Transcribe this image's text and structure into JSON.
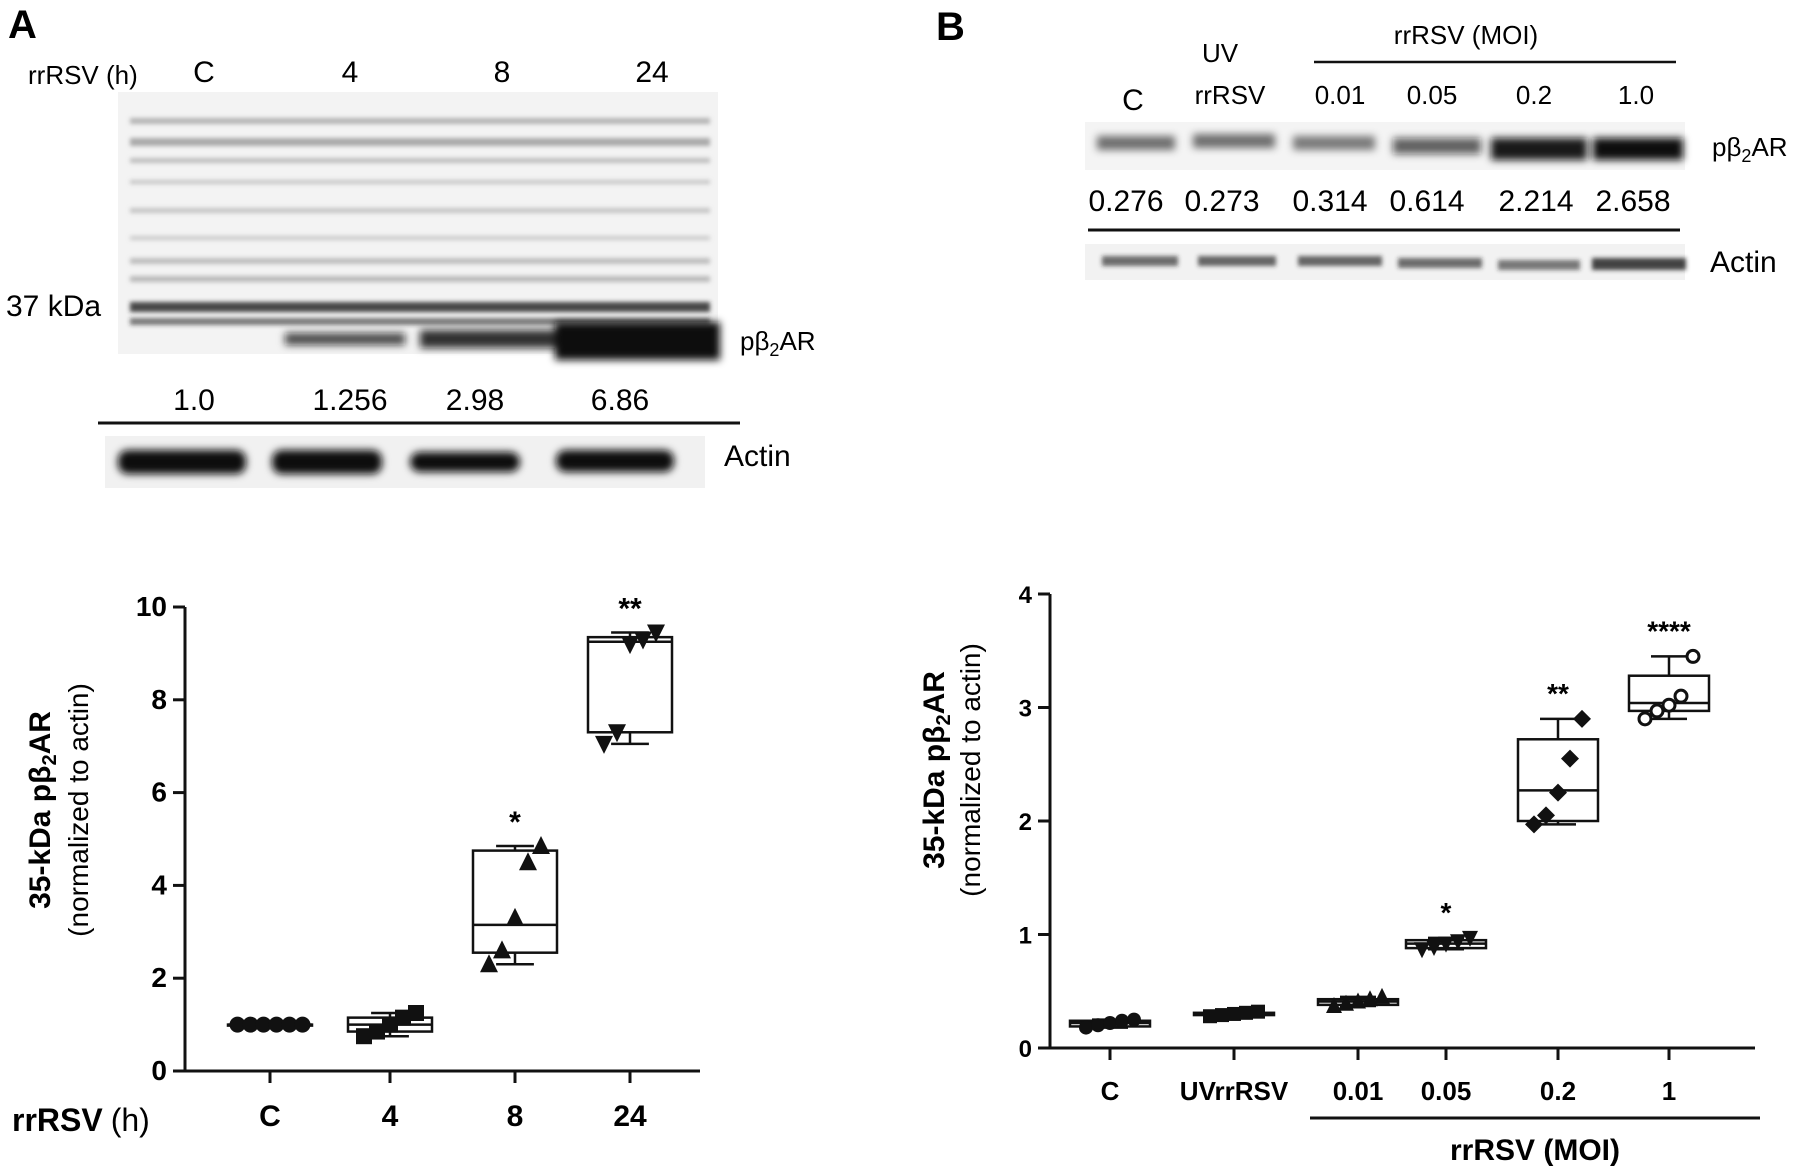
{
  "panel_a": {
    "letter": "A",
    "blot": {
      "row_label": "rrRSV (h)",
      "lanes": [
        "C",
        "4",
        "8",
        "24"
      ],
      "marker_label": "37 kDa",
      "band_label_prefix": "pβ",
      "band_label_sub": "2",
      "band_label_suffix": "AR",
      "ratios": [
        "1.0",
        "1.256",
        "2.98",
        "6.86"
      ],
      "loading_label": "Actin"
    }
  },
  "panel_b": {
    "letter": "B",
    "blot": {
      "lane_c": "C",
      "lane_uv_line1": "UV",
      "lane_uv_line2": "rrRSV",
      "group_label": "rrRSV (MOI)",
      "moi_lanes": [
        "0.01",
        "0.05",
        "0.2",
        "1.0"
      ],
      "band_label_prefix": "pβ",
      "band_label_sub": "2",
      "band_label_suffix": "AR",
      "ratios": [
        "0.276",
        "0.273",
        "0.314",
        "0.614",
        "2.214",
        "2.658"
      ],
      "loading_label": "Actin"
    }
  },
  "chart_data": [
    {
      "type": "box",
      "panel": "A",
      "ylabel_bold_prefix": "35-kDa pβ",
      "ylabel_sub": "2",
      "ylabel_bold_suffix": "AR",
      "ylabel_paren": "(normalized to actin)",
      "xlabel_bold": "rrRSV",
      "xlabel_unit": "(h)",
      "categories": [
        "C",
        "4",
        "8",
        "24"
      ],
      "ylim": [
        0,
        10
      ],
      "yticks": [
        0,
        2,
        4,
        6,
        8,
        10
      ],
      "markers": [
        "circle",
        "square",
        "triangle-up",
        "triangle-down"
      ],
      "boxes": [
        {
          "min": 1.0,
          "q1": 1.0,
          "median": 1.0,
          "q3": 1.0,
          "max": 1.0,
          "points": [
            1.0,
            1.0,
            1.0,
            1.0,
            1.0,
            1.0
          ],
          "sig": ""
        },
        {
          "min": 0.75,
          "q1": 0.85,
          "median": 1.0,
          "q3": 1.15,
          "max": 1.25,
          "points": [
            0.75,
            0.85,
            1.0,
            1.15,
            1.25
          ],
          "sig": ""
        },
        {
          "min": 2.3,
          "q1": 2.55,
          "median": 3.15,
          "q3": 4.75,
          "max": 4.85,
          "points": [
            2.3,
            2.6,
            3.3,
            4.5,
            4.85
          ],
          "sig": "*"
        },
        {
          "min": 7.05,
          "q1": 7.3,
          "median": 9.25,
          "q3": 9.35,
          "max": 9.45,
          "points": [
            7.05,
            7.3,
            9.2,
            9.3,
            9.45
          ],
          "sig": "**"
        }
      ]
    },
    {
      "type": "box",
      "panel": "B",
      "ylabel_bold_prefix": "35-kDa pβ",
      "ylabel_sub": "2",
      "ylabel_bold_suffix": "AR",
      "ylabel_paren": "(normalized to actin)",
      "group_label": "rrRSV (MOI)",
      "categories": [
        "C",
        "UVrrRSV",
        "0.01",
        "0.05",
        "0.2",
        "1"
      ],
      "ylim": [
        0,
        4
      ],
      "yticks": [
        0,
        1,
        2,
        3,
        4
      ],
      "markers": [
        "circle",
        "square",
        "triangle-up",
        "triangle-down",
        "diamond",
        "circle-open"
      ],
      "boxes": [
        {
          "min": 0.18,
          "q1": 0.19,
          "median": 0.22,
          "q3": 0.24,
          "max": 0.25,
          "points": [
            0.18,
            0.2,
            0.22,
            0.24,
            0.25
          ],
          "sig": ""
        },
        {
          "min": 0.28,
          "q1": 0.29,
          "median": 0.3,
          "q3": 0.31,
          "max": 0.32,
          "points": [
            0.28,
            0.29,
            0.3,
            0.31,
            0.32
          ],
          "sig": ""
        },
        {
          "min": 0.37,
          "q1": 0.38,
          "median": 0.41,
          "q3": 0.43,
          "max": 0.45,
          "points": [
            0.37,
            0.39,
            0.41,
            0.43,
            0.45
          ],
          "sig": ""
        },
        {
          "min": 0.87,
          "q1": 0.88,
          "median": 0.92,
          "q3": 0.95,
          "max": 0.97,
          "points": [
            0.87,
            0.89,
            0.92,
            0.94,
            0.97
          ],
          "sig": "*"
        },
        {
          "min": 1.97,
          "q1": 2.0,
          "median": 2.27,
          "q3": 2.72,
          "max": 2.9,
          "points": [
            1.97,
            2.05,
            2.25,
            2.55,
            2.9
          ],
          "sig": "**"
        },
        {
          "min": 2.9,
          "q1": 2.97,
          "median": 3.04,
          "q3": 3.28,
          "max": 3.45,
          "points": [
            2.9,
            2.97,
            3.02,
            3.1,
            3.45
          ],
          "sig": "****"
        }
      ]
    }
  ]
}
